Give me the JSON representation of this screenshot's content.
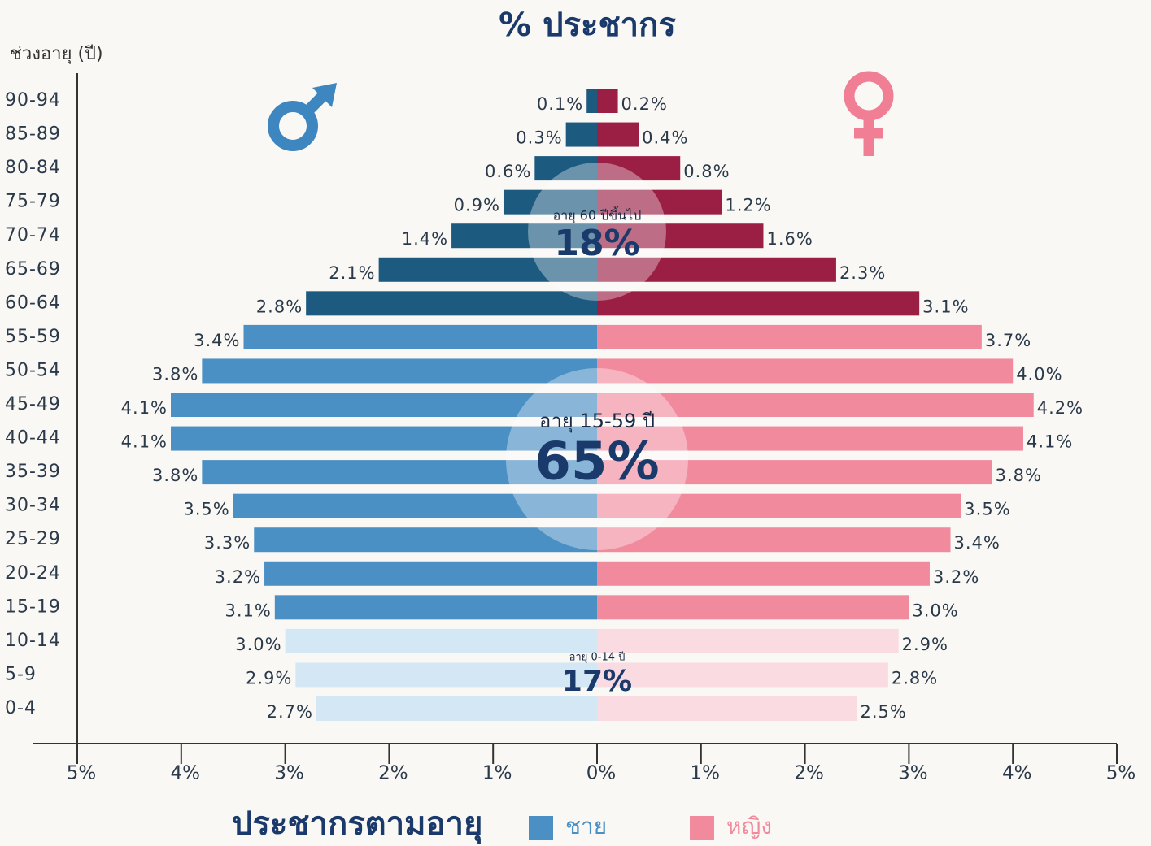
{
  "chart_data": {
    "type": "pyramid",
    "title": "% ประชากร",
    "y_label": "ช่วงอายุ (ปี)",
    "footer_title": "ประชากรตามอายุ",
    "categories": [
      "90-94",
      "85-89",
      "80-84",
      "75-79",
      "70-74",
      "65-69",
      "60-64",
      "55-59",
      "50-54",
      "45-49",
      "40-44",
      "35-39",
      "30-34",
      "25-29",
      "20-24",
      "15-19",
      "10-14",
      "5-9",
      "0-4"
    ],
    "series": [
      {
        "name": "ชาย",
        "side": "left",
        "color": "#4a90c4",
        "values": [
          0.1,
          0.3,
          0.6,
          0.9,
          1.4,
          2.1,
          2.8,
          3.4,
          3.8,
          4.1,
          4.1,
          3.8,
          3.5,
          3.3,
          3.2,
          3.1,
          3.0,
          2.9,
          2.7
        ],
        "value_labels": [
          "0.1%",
          "0.3%",
          "0.6%",
          "0.9%",
          "1.4%",
          "2.1%",
          "2.8%",
          "3.4%",
          "3.8%",
          "4.1%",
          "4.1%",
          "3.8%",
          "3.5%",
          "3.3%",
          "3.2%",
          "3.1%",
          "3.0%",
          "2.9%",
          "2.7%"
        ],
        "bar_colors": [
          "#1d5a80",
          "#1d5a80",
          "#1d5a80",
          "#1d5a80",
          "#1d5a80",
          "#1d5a80",
          "#1d5a80",
          "#4a90c4",
          "#4a90c4",
          "#4a90c4",
          "#4a90c4",
          "#4a90c4",
          "#4a90c4",
          "#4a90c4",
          "#4a90c4",
          "#4a90c4",
          "#d3e8f4",
          "#d3e8f4",
          "#d3e8f4"
        ]
      },
      {
        "name": "หญิง",
        "side": "right",
        "color": "#f28a9e",
        "values": [
          0.2,
          0.4,
          0.8,
          1.2,
          1.6,
          2.3,
          3.1,
          3.7,
          4.0,
          4.2,
          4.1,
          3.8,
          3.5,
          3.4,
          3.2,
          3.0,
          2.9,
          2.8,
          2.5
        ],
        "value_labels": [
          "0.2%",
          "0.4%",
          "0.8%",
          "1.2%",
          "1.6%",
          "2.3%",
          "3.1%",
          "3.7%",
          "4.0%",
          "4.2%",
          "4.1%",
          "3.8%",
          "3.5%",
          "3.4%",
          "3.2%",
          "3.0%",
          "2.9%",
          "2.8%",
          "2.5%"
        ],
        "bar_colors": [
          "#9b1f45",
          "#9b1f45",
          "#9b1f45",
          "#9b1f45",
          "#9b1f45",
          "#9b1f45",
          "#9b1f45",
          "#f28a9e",
          "#f28a9e",
          "#f28a9e",
          "#f28a9e",
          "#f28a9e",
          "#f28a9e",
          "#f28a9e",
          "#f28a9e",
          "#f28a9e",
          "#fadbe2",
          "#fadbe2",
          "#fadbe2"
        ]
      }
    ],
    "xlim": [
      -5,
      5
    ],
    "xticks": [
      {
        "value": -5,
        "label": "5%"
      },
      {
        "value": -4,
        "label": "4%"
      },
      {
        "value": -3,
        "label": "3%"
      },
      {
        "value": -2,
        "label": "2%"
      },
      {
        "value": -1,
        "label": "1%"
      },
      {
        "value": 0,
        "label": "0%"
      },
      {
        "value": 1,
        "label": "1%"
      },
      {
        "value": 2,
        "label": "2%"
      },
      {
        "value": 3,
        "label": "3%"
      },
      {
        "value": 4,
        "label": "4%"
      },
      {
        "value": 5,
        "label": "5%"
      }
    ],
    "annotations": [
      {
        "text": "อายุ 60 ปีขึ้นไป",
        "value": 18,
        "label": "18%"
      },
      {
        "text": "อายุ 15-59 ปี",
        "value": 65,
        "label": "65%"
      },
      {
        "text": "อายุ 0-14 ปี",
        "value": 17,
        "label": "17%"
      }
    ]
  }
}
